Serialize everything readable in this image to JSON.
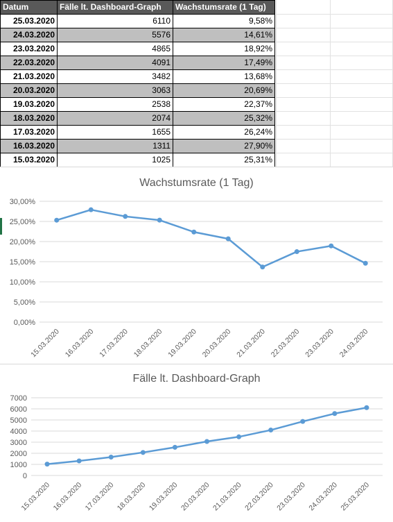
{
  "table": {
    "headers": [
      "Datum",
      "Fälle lt. Dashboard-Graph",
      "Wachstumsrate (1 Tag)"
    ],
    "rows": [
      {
        "date": "25.03.2020",
        "cases": "6110",
        "rate": "9,58%"
      },
      {
        "date": "24.03.2020",
        "cases": "5576",
        "rate": "14,61%"
      },
      {
        "date": "23.03.2020",
        "cases": "4865",
        "rate": "18,92%"
      },
      {
        "date": "22.03.2020",
        "cases": "4091",
        "rate": "17,49%"
      },
      {
        "date": "21.03.2020",
        "cases": "3482",
        "rate": "13,68%"
      },
      {
        "date": "20.03.2020",
        "cases": "3063",
        "rate": "20,69%"
      },
      {
        "date": "19.03.2020",
        "cases": "2538",
        "rate": "22,37%"
      },
      {
        "date": "18.03.2020",
        "cases": "2074",
        "rate": "25,32%"
      },
      {
        "date": "17.03.2020",
        "cases": "1655",
        "rate": "26,24%"
      },
      {
        "date": "16.03.2020",
        "cases": "1311",
        "rate": "27,90%"
      },
      {
        "date": "15.03.2020",
        "cases": "1025",
        "rate": "25,31%"
      }
    ]
  },
  "chart_data": [
    {
      "type": "line",
      "title": "Wachstumsrate (1 Tag)",
      "categories": [
        "15.03.2020",
        "16.03.2020",
        "17.03.2020",
        "18.03.2020",
        "19.03.2020",
        "20.03.2020",
        "21.03.2020",
        "22.03.2020",
        "23.03.2020",
        "24.03.2020"
      ],
      "values": [
        25.31,
        27.9,
        26.24,
        25.32,
        22.37,
        20.69,
        13.68,
        17.49,
        18.92,
        14.61
      ],
      "ylim": [
        0,
        30
      ],
      "yticks": [
        0,
        5,
        10,
        15,
        20,
        25,
        30
      ],
      "ytick_labels": [
        "0,00%",
        "5,00%",
        "10,00%",
        "15,00%",
        "20,00%",
        "25,00%",
        "30,00%"
      ],
      "grid": true,
      "color": "#5b9bd5"
    },
    {
      "type": "line",
      "title": "Fälle lt. Dashboard-Graph",
      "categories": [
        "15.03.2020",
        "16.03.2020",
        "17.03.2020",
        "18.03.2020",
        "19.03.2020",
        "20.03.2020",
        "21.03.2020",
        "22.03.2020",
        "23.03.2020",
        "24.03.2020",
        "25.03.2020"
      ],
      "values": [
        1025,
        1311,
        1655,
        2074,
        2538,
        3063,
        3482,
        4091,
        4865,
        5576,
        6110
      ],
      "ylim": [
        0,
        7000
      ],
      "yticks": [
        0,
        1000,
        2000,
        3000,
        4000,
        5000,
        6000,
        7000
      ],
      "ytick_labels": [
        "0",
        "1000",
        "2000",
        "3000",
        "4000",
        "5000",
        "6000",
        "7000"
      ],
      "grid": true,
      "color": "#5b9bd5"
    }
  ]
}
